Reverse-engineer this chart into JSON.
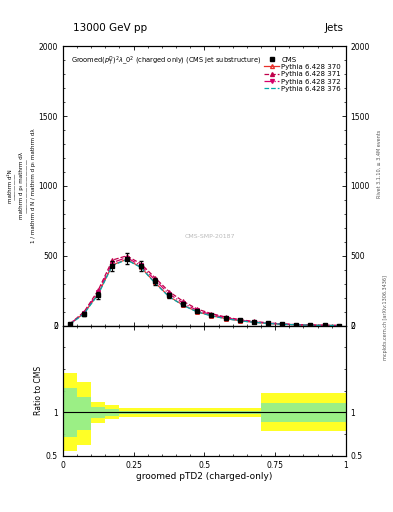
{
  "title_top": "13000 GeV pp",
  "title_right": "Jets",
  "plot_title": "Groomed$(p_T^D)^2\\lambda\\_0^2$ (charged only) (CMS jet substructure)",
  "xlabel": "groomed pTD2 (charged-only)",
  "rivet_label": "Rivet 3.1.10, ≥ 3.4M events",
  "arxiv_label": "mcplots.cern.ch [arXiv:1306.3436]",
  "cms_watermark": "CMS-SMP-20187",
  "xlim": [
    0,
    1
  ],
  "ylim_main": [
    0,
    2000
  ],
  "ylim_ratio": [
    0.5,
    2.0
  ],
  "x_data": [
    0.025,
    0.075,
    0.125,
    0.175,
    0.225,
    0.275,
    0.325,
    0.375,
    0.425,
    0.475,
    0.525,
    0.575,
    0.625,
    0.675,
    0.725,
    0.775,
    0.825,
    0.875,
    0.925,
    0.975
  ],
  "cms_y": [
    10,
    85,
    220,
    430,
    480,
    430,
    320,
    220,
    155,
    105,
    75,
    55,
    38,
    27,
    18,
    12,
    8,
    5,
    3,
    2
  ],
  "cms_yerr": [
    5,
    15,
    25,
    35,
    40,
    35,
    25,
    18,
    12,
    9,
    7,
    5,
    4,
    3,
    2,
    2,
    1,
    1,
    1,
    1
  ],
  "py370_y": [
    12,
    90,
    230,
    435,
    475,
    420,
    310,
    210,
    148,
    100,
    72,
    52,
    36,
    25,
    17,
    11,
    7,
    4,
    3,
    2
  ],
  "py371_y": [
    14,
    100,
    255,
    470,
    500,
    445,
    345,
    245,
    175,
    120,
    87,
    63,
    44,
    31,
    21,
    14,
    9,
    6,
    4,
    2
  ],
  "py372_y": [
    13,
    95,
    242,
    452,
    488,
    432,
    330,
    228,
    162,
    110,
    80,
    58,
    40,
    28,
    19,
    12,
    8,
    5,
    3,
    2
  ],
  "py376_y": [
    11,
    87,
    225,
    432,
    472,
    418,
    307,
    208,
    146,
    99,
    71,
    51,
    36,
    25,
    17,
    11,
    7,
    4,
    3,
    2
  ],
  "color_370": "#e8302a",
  "color_371": "#c0004a",
  "color_372": "#d4006a",
  "color_376": "#00aaaa",
  "color_cms": "#000000",
  "yticks_main": [
    0,
    500,
    1000,
    1500,
    2000
  ],
  "ytick_labels_main": [
    "0",
    "500",
    "1000",
    "1500",
    "2000"
  ],
  "ratio_yticks": [
    0.5,
    1.0,
    2.0
  ],
  "ratio_ytick_labels": [
    "0.5",
    "1",
    "2"
  ],
  "yellow_up": [
    1.45,
    1.35,
    1.12,
    1.08,
    1.05,
    1.05,
    1.05,
    1.05,
    1.05,
    1.05,
    1.05,
    1.05,
    1.05,
    1.05,
    1.22,
    1.22,
    1.22,
    1.22,
    1.22,
    1.22
  ],
  "yellow_dn": [
    0.55,
    0.62,
    0.88,
    0.92,
    0.95,
    0.95,
    0.95,
    0.95,
    0.95,
    0.95,
    0.95,
    0.95,
    0.95,
    0.95,
    0.78,
    0.78,
    0.78,
    0.78,
    0.78,
    0.78
  ],
  "green_up": [
    1.28,
    1.18,
    1.06,
    1.04,
    1.02,
    1.02,
    1.02,
    1.02,
    1.02,
    1.02,
    1.02,
    1.02,
    1.02,
    1.02,
    1.11,
    1.11,
    1.11,
    1.11,
    1.11,
    1.11
  ],
  "green_dn": [
    0.72,
    0.8,
    0.94,
    0.96,
    0.98,
    0.98,
    0.98,
    0.98,
    0.98,
    0.98,
    0.98,
    0.98,
    0.98,
    0.98,
    0.89,
    0.89,
    0.89,
    0.89,
    0.89,
    0.89
  ],
  "bg_color": "#ffffff"
}
